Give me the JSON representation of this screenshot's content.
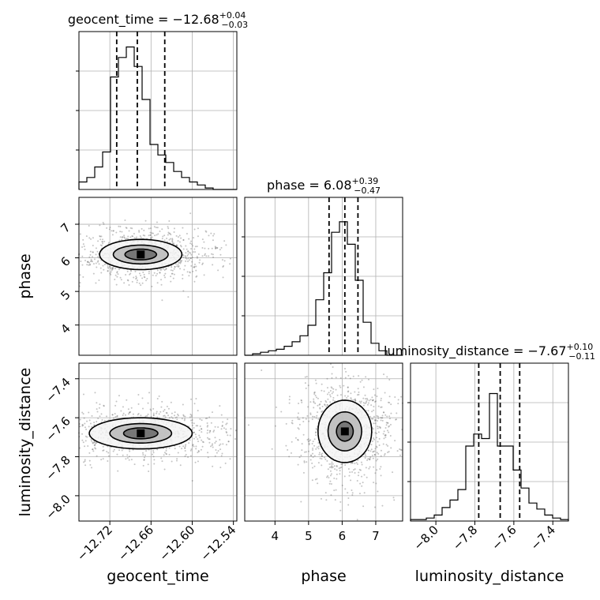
{
  "chart_data": {
    "type": "corner",
    "parameters": [
      "geocent_time",
      "phase",
      "luminosity_distance"
    ],
    "titles": [
      {
        "param": "geocent_time",
        "median": "−12.68",
        "plus": "+0.04",
        "minus": "−0.03"
      },
      {
        "param": "phase",
        "median": "6.08",
        "plus": "+0.39",
        "minus": "−0.47"
      },
      {
        "param": "luminosity_distance",
        "median": "−7.67",
        "plus": "+0.10",
        "minus": "−0.11"
      }
    ],
    "ranges": {
      "geocent_time": [
        -12.765,
        -12.535
      ],
      "phase": [
        3.1,
        7.8
      ],
      "luminosity_distance": [
        -8.13,
        -7.32
      ]
    },
    "ticks": {
      "geocent_time": {
        "values": [
          -12.72,
          -12.66,
          -12.6,
          -12.54
        ],
        "labels": [
          "−12.72",
          "−12.66",
          "−12.60",
          "−12.54"
        ]
      },
      "phase": {
        "values": [
          4,
          5,
          6,
          7
        ],
        "labels": [
          "4",
          "5",
          "6",
          "7"
        ]
      },
      "luminosity_distance": {
        "values": [
          -8.0,
          -7.8,
          -7.6,
          -7.4
        ],
        "labels": [
          "−8.0",
          "−7.8",
          "−7.6",
          "−7.4"
        ]
      }
    },
    "quantiles": {
      "geocent_time": [
        -12.71,
        -12.68,
        -12.64
      ],
      "phase": [
        5.61,
        6.08,
        6.47
      ],
      "luminosity_distance": [
        -7.78,
        -7.67,
        -7.57
      ]
    },
    "histograms": {
      "geocent_time": {
        "edges": [
          -12.765,
          -12.7535,
          -12.742,
          -12.7305,
          -12.719,
          -12.7075,
          -12.696,
          -12.6845,
          -12.673,
          -12.6615,
          -12.65,
          -12.6385,
          -12.627,
          -12.6155,
          -12.604,
          -12.5925,
          -12.581,
          -12.5695,
          -12.558,
          -12.5465,
          -12.535
        ],
        "counts": [
          0.05,
          0.08,
          0.15,
          0.25,
          0.75,
          0.88,
          0.95,
          0.82,
          0.6,
          0.3,
          0.23,
          0.18,
          0.12,
          0.08,
          0.05,
          0.03,
          0.01,
          0.0,
          0.0,
          0.0
        ]
      },
      "phase": {
        "edges": [
          3.1,
          3.335,
          3.57,
          3.805,
          4.04,
          4.275,
          4.51,
          4.745,
          4.98,
          5.215,
          5.45,
          5.685,
          5.92,
          6.155,
          6.39,
          6.625,
          6.86,
          7.095,
          7.33,
          7.565,
          7.8
        ],
        "counts": [
          0.0,
          0.01,
          0.02,
          0.03,
          0.04,
          0.06,
          0.09,
          0.13,
          0.2,
          0.37,
          0.55,
          0.82,
          0.89,
          0.74,
          0.5,
          0.22,
          0.08,
          0.03,
          0.0,
          0.0
        ]
      },
      "luminosity_distance": {
        "edges": [
          -8.13,
          -8.0895,
          -8.049,
          -8.0085,
          -7.968,
          -7.9275,
          -7.887,
          -7.8465,
          -7.806,
          -7.7655,
          -7.725,
          -7.6845,
          -7.644,
          -7.6035,
          -7.563,
          -7.5225,
          -7.482,
          -7.4415,
          -7.401,
          -7.3605,
          -7.32
        ],
        "counts": [
          0.01,
          0.01,
          0.02,
          0.04,
          0.09,
          0.14,
          0.21,
          0.5,
          0.58,
          0.55,
          0.85,
          0.5,
          0.5,
          0.34,
          0.22,
          0.12,
          0.08,
          0.04,
          0.02,
          0.01
        ]
      }
    },
    "contours_2d": [
      {
        "x": "geocent_time",
        "y": "phase",
        "mean": [
          -12.675,
          6.1
        ],
        "levels": [
          {
            "rx": 0.06,
            "ry": 0.45,
            "rot": -0.55
          },
          {
            "rx": 0.04,
            "ry": 0.28,
            "rot": -0.55
          },
          {
            "rx": 0.023,
            "ry": 0.16,
            "rot": -0.55
          }
        ]
      },
      {
        "x": "geocent_time",
        "y": "luminosity_distance",
        "mean": [
          -12.675,
          -7.68
        ],
        "levels": [
          {
            "rx": 0.075,
            "ry": 0.08,
            "rot": -0.6
          },
          {
            "rx": 0.045,
            "ry": 0.05,
            "rot": -0.6
          },
          {
            "rx": 0.025,
            "ry": 0.028,
            "rot": -0.6
          }
        ]
      },
      {
        "x": "phase",
        "y": "luminosity_distance",
        "mean": [
          6.08,
          -7.67
        ],
        "levels": [
          {
            "rx": 0.8,
            "ry": 0.16,
            "rot": 0.5
          },
          {
            "rx": 0.5,
            "ry": 0.1,
            "rot": 0.5
          },
          {
            "rx": 0.25,
            "ry": 0.05,
            "rot": 0.5
          }
        ]
      }
    ],
    "grid": true
  }
}
